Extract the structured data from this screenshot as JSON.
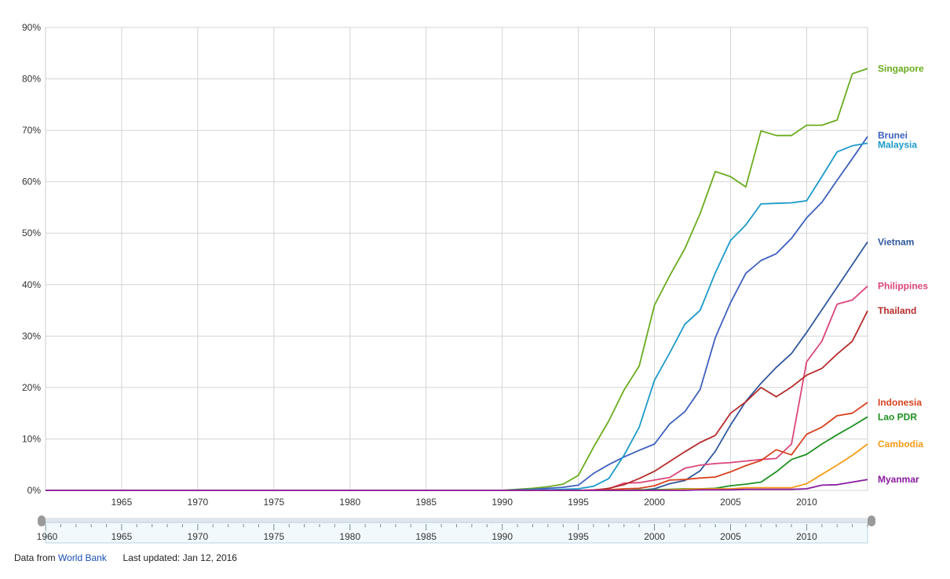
{
  "chart_data": {
    "type": "line",
    "title": "",
    "xlabel": "",
    "ylabel": "",
    "xlim": [
      1960,
      2014
    ],
    "ylim": [
      0,
      90
    ],
    "x_ticks": [
      1965,
      1970,
      1975,
      1980,
      1985,
      1990,
      1995,
      2000,
      2005,
      2010
    ],
    "y_ticks": [
      {
        "value": 0,
        "label": "0%"
      },
      {
        "value": 10,
        "label": "10%"
      },
      {
        "value": 20,
        "label": "20%"
      },
      {
        "value": 30,
        "label": "30%"
      },
      {
        "value": 40,
        "label": "40%"
      },
      {
        "value": 50,
        "label": "50%"
      },
      {
        "value": 60,
        "label": "60%"
      },
      {
        "value": 70,
        "label": "70%"
      },
      {
        "value": 80,
        "label": "80%"
      },
      {
        "value": 90,
        "label": "90%"
      }
    ],
    "grid": true,
    "legend": "right-end labels",
    "series": [
      {
        "name": "Singapore",
        "color": "#6aab1e",
        "label_y": 82,
        "points": [
          [
            1990,
            0
          ],
          [
            1991,
            0.2
          ],
          [
            1992,
            0.4
          ],
          [
            1993,
            0.7
          ],
          [
            1994,
            1.2
          ],
          [
            1995,
            2.9
          ],
          [
            1996,
            8.4
          ],
          [
            1997,
            13.5
          ],
          [
            1998,
            19.5
          ],
          [
            1999,
            24.2
          ],
          [
            2000,
            36
          ],
          [
            2001,
            41.7
          ],
          [
            2002,
            47
          ],
          [
            2003,
            53.8
          ],
          [
            2004,
            62
          ],
          [
            2005,
            61
          ],
          [
            2006,
            59
          ],
          [
            2007,
            69.9
          ],
          [
            2008,
            69
          ],
          [
            2009,
            69
          ],
          [
            2010,
            71
          ],
          [
            2011,
            71
          ],
          [
            2012,
            72
          ],
          [
            2013,
            81
          ],
          [
            2014,
            82
          ]
        ]
      },
      {
        "name": "Brunei",
        "color": "#3d5fbf",
        "label_y": 69,
        "points": [
          [
            1990,
            0
          ],
          [
            1991,
            0.1
          ],
          [
            1992,
            0.2
          ],
          [
            1993,
            0.4
          ],
          [
            1994,
            0.6
          ],
          [
            1995,
            1
          ],
          [
            1996,
            3.3
          ],
          [
            1997,
            5
          ],
          [
            1998,
            6.5
          ],
          [
            1999,
            7.8
          ],
          [
            2000,
            9
          ],
          [
            2001,
            12.9
          ],
          [
            2002,
            15.3
          ],
          [
            2003,
            19.6
          ],
          [
            2004,
            29.7
          ],
          [
            2005,
            36.5
          ],
          [
            2006,
            42.2
          ],
          [
            2007,
            44.7
          ],
          [
            2008,
            46
          ],
          [
            2009,
            49
          ],
          [
            2010,
            53
          ],
          [
            2011,
            56
          ],
          [
            2012,
            60.3
          ],
          [
            2013,
            64.5
          ],
          [
            2014,
            68.8
          ]
        ]
      },
      {
        "name": "Malaysia",
        "color": "#1c9ac9",
        "label_y": 67.2,
        "points": [
          [
            1990,
            0
          ],
          [
            1991,
            0
          ],
          [
            1992,
            0.1
          ],
          [
            1993,
            0.1
          ],
          [
            1994,
            0.2
          ],
          [
            1995,
            0.3
          ],
          [
            1996,
            0.8
          ],
          [
            1997,
            2.3
          ],
          [
            1998,
            6.8
          ],
          [
            1999,
            12.3
          ],
          [
            2000,
            21.4
          ],
          [
            2001,
            26.7
          ],
          [
            2002,
            32.3
          ],
          [
            2003,
            35
          ],
          [
            2004,
            42.3
          ],
          [
            2005,
            48.6
          ],
          [
            2006,
            51.6
          ],
          [
            2007,
            55.7
          ],
          [
            2008,
            55.8
          ],
          [
            2009,
            55.9
          ],
          [
            2010,
            56.3
          ],
          [
            2011,
            61
          ],
          [
            2012,
            65.8
          ],
          [
            2013,
            67
          ],
          [
            2014,
            67.5
          ]
        ]
      },
      {
        "name": "Vietnam",
        "color": "#31589c",
        "label_y": 48.3,
        "points": [
          [
            1990,
            0
          ],
          [
            1996,
            0
          ],
          [
            1997,
            0
          ],
          [
            1998,
            0
          ],
          [
            1999,
            0
          ],
          [
            2000,
            0.3
          ],
          [
            2001,
            1.3
          ],
          [
            2002,
            1.9
          ],
          [
            2003,
            3.8
          ],
          [
            2004,
            7.6
          ],
          [
            2005,
            12.7
          ],
          [
            2006,
            17.3
          ],
          [
            2007,
            20.8
          ],
          [
            2008,
            23.9
          ],
          [
            2009,
            26.6
          ],
          [
            2010,
            30.7
          ],
          [
            2011,
            35.1
          ],
          [
            2012,
            39.5
          ],
          [
            2013,
            43.9
          ],
          [
            2014,
            48.3
          ]
        ]
      },
      {
        "name": "Philippines",
        "color": "#dc4576",
        "label_y": 39.7,
        "points": [
          [
            1990,
            0
          ],
          [
            1994,
            0
          ],
          [
            1995,
            0
          ],
          [
            1996,
            0.1
          ],
          [
            1997,
            0.3
          ],
          [
            1998,
            1.4
          ],
          [
            1999,
            1.5
          ],
          [
            2000,
            2
          ],
          [
            2001,
            2.5
          ],
          [
            2002,
            4.3
          ],
          [
            2003,
            4.9
          ],
          [
            2004,
            5.2
          ],
          [
            2005,
            5.4
          ],
          [
            2006,
            5.7
          ],
          [
            2007,
            6
          ],
          [
            2008,
            6.2
          ],
          [
            2009,
            9
          ],
          [
            2010,
            25
          ],
          [
            2011,
            29
          ],
          [
            2012,
            36.2
          ],
          [
            2013,
            37
          ],
          [
            2014,
            39.7
          ]
        ]
      },
      {
        "name": "Thailand",
        "color": "#b52b2b",
        "label_y": 34.9,
        "points": [
          [
            1990,
            0
          ],
          [
            1994,
            0
          ],
          [
            1995,
            0
          ],
          [
            1996,
            0
          ],
          [
            1997,
            0.4
          ],
          [
            1998,
            1.1
          ],
          [
            1999,
            2.3
          ],
          [
            2000,
            3.7
          ],
          [
            2001,
            5.6
          ],
          [
            2002,
            7.5
          ],
          [
            2003,
            9.3
          ],
          [
            2004,
            10.7
          ],
          [
            2005,
            15
          ],
          [
            2006,
            17.2
          ],
          [
            2007,
            20
          ],
          [
            2008,
            18.2
          ],
          [
            2009,
            20.1
          ],
          [
            2010,
            22.4
          ],
          [
            2011,
            23.7
          ],
          [
            2012,
            26.5
          ],
          [
            2013,
            29
          ],
          [
            2014,
            34.9
          ]
        ]
      },
      {
        "name": "Indonesia",
        "color": "#d7421f",
        "label_y": 17.1,
        "points": [
          [
            1990,
            0
          ],
          [
            1994,
            0
          ],
          [
            1995,
            0
          ],
          [
            1996,
            0
          ],
          [
            1997,
            0.1
          ],
          [
            1998,
            0.3
          ],
          [
            1999,
            0.4
          ],
          [
            2000,
            0.9
          ],
          [
            2001,
            2
          ],
          [
            2002,
            2.1
          ],
          [
            2003,
            2.4
          ],
          [
            2004,
            2.6
          ],
          [
            2005,
            3.6
          ],
          [
            2006,
            4.8
          ],
          [
            2007,
            5.8
          ],
          [
            2008,
            7.9
          ],
          [
            2009,
            6.9
          ],
          [
            2010,
            10.9
          ],
          [
            2011,
            12.3
          ],
          [
            2012,
            14.5
          ],
          [
            2013,
            15
          ],
          [
            2014,
            17.1
          ]
        ]
      },
      {
        "name": "Lao PDR",
        "color": "#1e9121",
        "label_y": 14.3,
        "points": [
          [
            1990,
            0
          ],
          [
            1998,
            0
          ],
          [
            1999,
            0.1
          ],
          [
            2000,
            0.1
          ],
          [
            2001,
            0.2
          ],
          [
            2002,
            0.3
          ],
          [
            2003,
            0.3
          ],
          [
            2004,
            0.4
          ],
          [
            2005,
            0.9
          ],
          [
            2006,
            1.2
          ],
          [
            2007,
            1.6
          ],
          [
            2008,
            3.6
          ],
          [
            2009,
            6
          ],
          [
            2010,
            7
          ],
          [
            2011,
            9
          ],
          [
            2012,
            10.8
          ],
          [
            2013,
            12.5
          ],
          [
            2014,
            14.3
          ]
        ]
      },
      {
        "name": "Cambodia",
        "color": "#f59c18",
        "label_y": 9,
        "points": [
          [
            1990,
            0
          ],
          [
            1998,
            0
          ],
          [
            2000,
            0
          ],
          [
            2001,
            0.1
          ],
          [
            2002,
            0.2
          ],
          [
            2003,
            0.3
          ],
          [
            2004,
            0.3
          ],
          [
            2005,
            0.3
          ],
          [
            2006,
            0.5
          ],
          [
            2007,
            0.5
          ],
          [
            2008,
            0.5
          ],
          [
            2009,
            0.5
          ],
          [
            2010,
            1.3
          ],
          [
            2011,
            3.1
          ],
          [
            2012,
            4.9
          ],
          [
            2013,
            6.8
          ],
          [
            2014,
            9
          ]
        ]
      },
      {
        "name": "Myanmar",
        "color": "#8a1aa0",
        "label_y": 2.1,
        "points": [
          [
            1960,
            0
          ],
          [
            2000,
            0
          ],
          [
            2001,
            0
          ],
          [
            2002,
            0
          ],
          [
            2003,
            0.1
          ],
          [
            2004,
            0.1
          ],
          [
            2005,
            0.1
          ],
          [
            2006,
            0.2
          ],
          [
            2007,
            0.2
          ],
          [
            2008,
            0.2
          ],
          [
            2009,
            0.2
          ],
          [
            2010,
            0.3
          ],
          [
            2011,
            1
          ],
          [
            2012,
            1.1
          ],
          [
            2013,
            1.6
          ],
          [
            2014,
            2.1
          ]
        ]
      }
    ],
    "zero_line": {
      "color": "#c23a3a",
      "from": 1960,
      "to": 1990
    },
    "range_selector": {
      "from": 1960,
      "to": 2014,
      "first_label": "1960",
      "labels": [
        1965,
        1970,
        1975,
        1980,
        1985,
        1990,
        1995,
        2000,
        2005,
        2010
      ]
    }
  },
  "footer": {
    "prefix": "Data from",
    "link": "World Bank",
    "updated": "Last updated: Jan 12, 2016"
  }
}
